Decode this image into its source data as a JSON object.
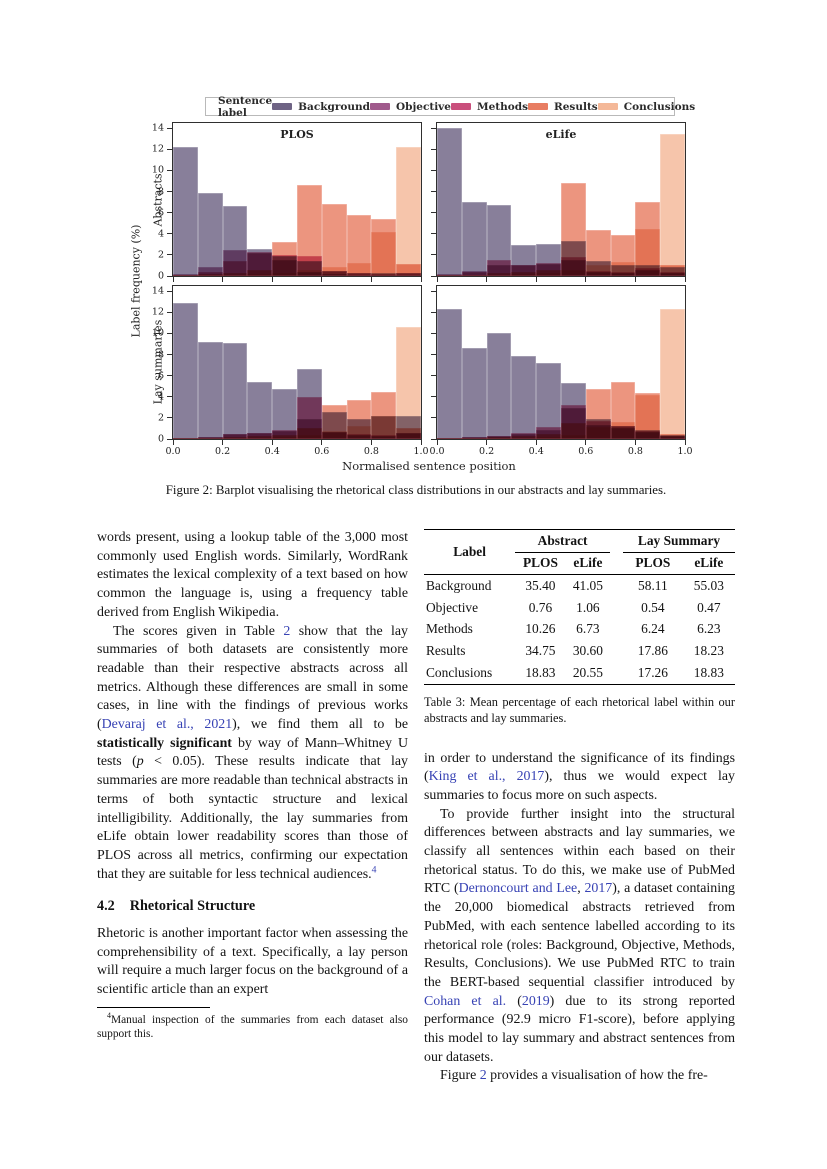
{
  "figure": {
    "caption": "Figure 2: Barplot visualising the rhetorical class distributions in our abstracts and lay summaries.",
    "chart_data": {
      "type": "bar",
      "variant": "overlaid-histogram-2x2-panels",
      "legend_title": "Sentence label",
      "legend_position": "top",
      "series_names": [
        "Background",
        "Objective",
        "Methods",
        "Results",
        "Conclusions"
      ],
      "colors": {
        "Background": "#6e6384",
        "Objective": "#a05a8c",
        "Methods": "#c94f7c",
        "Results": "#e87d62",
        "Conclusions": "#f4b898"
      },
      "col_titles": [
        "PLOS",
        "eLife"
      ],
      "row_labels": [
        "Abstracts",
        "Lay summaries"
      ],
      "ylabel": "Label frequency (%)",
      "xlabel": "Normalised sentence position",
      "y_ticks": [
        0,
        2,
        4,
        6,
        8,
        10,
        12,
        14
      ],
      "x_ticks": [
        "0.0",
        "0.2",
        "0.4",
        "0.6",
        "0.8",
        "1.0"
      ],
      "ylim": [
        0,
        14.5
      ],
      "xlim": [
        0.0,
        1.0
      ],
      "bin_width": 0.1,
      "grid": false,
      "panels": [
        {
          "row": "Abstracts",
          "col": "PLOS",
          "series": [
            {
              "name": "Background",
              "values": [
                12.2,
                7.9,
                6.6,
                2.6,
                1.9,
                1.4,
                0.5,
                0.3,
                0.25,
                0.3
              ]
            },
            {
              "name": "Objective",
              "values": [
                0.2,
                0.9,
                2.5,
                2.2,
                1.5,
                0.4,
                0.15,
                0.1,
                0.1,
                0.1
              ]
            },
            {
              "name": "Methods",
              "values": [
                0.1,
                0.4,
                1.4,
                2.3,
                2.0,
                1.9,
                0.5,
                0.3,
                0.2,
                0.3
              ]
            },
            {
              "name": "Results",
              "values": [
                0.1,
                0.15,
                0.3,
                0.6,
                3.2,
                8.6,
                6.8,
                5.8,
                5.4,
                1.1
              ]
            },
            {
              "name": "Conclusions",
              "values": [
                0.05,
                0.1,
                0.1,
                0.2,
                0.3,
                0.6,
                0.9,
                1.2,
                4.2,
                12.2
              ]
            }
          ]
        },
        {
          "row": "Abstracts",
          "col": "eLife",
          "series": [
            {
              "name": "Background",
              "values": [
                14.0,
                7.0,
                6.7,
                2.9,
                3.0,
                3.3,
                1.4,
                1.0,
                1.0,
                0.9
              ]
            },
            {
              "name": "Objective",
              "values": [
                0.15,
                0.5,
                1.0,
                1.0,
                1.1,
                1.5,
                0.4,
                0.3,
                0.6,
                0.3
              ]
            },
            {
              "name": "Methods",
              "values": [
                0.1,
                0.4,
                1.5,
                1.0,
                1.2,
                1.8,
                0.5,
                0.4,
                0.8,
                0.4
              ]
            },
            {
              "name": "Results",
              "values": [
                0.05,
                0.1,
                0.3,
                0.4,
                0.6,
                8.8,
                4.4,
                3.9,
                7.0,
                1.0
              ]
            },
            {
              "name": "Conclusions",
              "values": [
                0.05,
                0.1,
                0.1,
                0.15,
                0.3,
                0.6,
                1.0,
                1.3,
                4.5,
                13.5
              ]
            }
          ]
        },
        {
          "row": "Lay summaries",
          "col": "PLOS",
          "series": [
            {
              "name": "Background",
              "values": [
                12.9,
                9.2,
                9.1,
                5.4,
                4.7,
                6.65,
                2.6,
                1.9,
                2.2,
                2.2
              ]
            },
            {
              "name": "Objective",
              "values": [
                0.1,
                0.2,
                0.5,
                0.55,
                0.8,
                1.9,
                0.7,
                0.4,
                0.3,
                0.6
              ]
            },
            {
              "name": "Methods",
              "values": [
                0.1,
                0.15,
                0.5,
                0.6,
                0.9,
                4.0,
                0.7,
                0.5,
                0.4,
                0.6
              ]
            },
            {
              "name": "Results",
              "values": [
                0.05,
                0.1,
                0.15,
                0.25,
                0.4,
                1.0,
                3.2,
                3.7,
                4.45,
                1.0
              ]
            },
            {
              "name": "Conclusions",
              "values": [
                0.05,
                0.05,
                0.1,
                0.1,
                0.2,
                0.4,
                0.8,
                1.2,
                2.2,
                10.65
              ]
            }
          ]
        },
        {
          "row": "Lay summaries",
          "col": "eLife",
          "series": [
            {
              "name": "Background",
              "values": [
                12.3,
                8.6,
                10.0,
                7.9,
                7.2,
                5.3,
                1.9,
                1.2,
                0.9,
                0.4
              ]
            },
            {
              "name": "Objective",
              "values": [
                0.1,
                0.15,
                0.25,
                0.5,
                0.9,
                2.9,
                1.3,
                1.0,
                0.7,
                0.3
              ]
            },
            {
              "name": "Methods",
              "values": [
                0.1,
                0.15,
                0.3,
                0.6,
                1.1,
                3.2,
                1.7,
                1.2,
                0.8,
                0.3
              ]
            },
            {
              "name": "Results",
              "values": [
                0.05,
                0.1,
                0.15,
                0.25,
                0.5,
                1.5,
                4.7,
                5.4,
                4.4,
                0.5
              ]
            },
            {
              "name": "Conclusions",
              "values": [
                0.05,
                0.05,
                0.1,
                0.1,
                0.2,
                0.4,
                1.1,
                1.6,
                4.2,
                12.3
              ]
            }
          ]
        }
      ]
    }
  },
  "left_column": {
    "paragraphs": [
      {
        "indent": false,
        "segments": [
          {
            "t": "words present, using a lookup table of the 3,000 most commonly used English words.  Similarly, WordRank estimates the lexical complexity of a text based on how common the language is, using a frequency table derived from English Wikipedia."
          }
        ]
      },
      {
        "indent": true,
        "segments": [
          {
            "t": "The scores given in Table "
          },
          {
            "t": "2",
            "s": "link"
          },
          {
            "t": " show that the lay summaries of both datasets are consistently more readable than their respective abstracts across all metrics.  Although these differences are small in some cases, in line with the findings of previous works ("
          },
          {
            "t": "Devaraj et al., 2021",
            "s": "link"
          },
          {
            "t": "), we find them all to be "
          },
          {
            "t": "statistically significant",
            "s": "bold"
          },
          {
            "t": " by way of Mann–Whitney U tests ("
          },
          {
            "t": "p",
            "s": "italic"
          },
          {
            "t": " < 0.05).  These results indicate that lay summaries are more readable than technical abstracts in terms of both syntactic structure and lexical intelligibility.  Additionally, the lay summaries from eLife obtain lower readability scores than those of PLOS across all metrics, confirming our expectation that they are suitable for less technical audiences."
          },
          {
            "t": "4",
            "s": "sup link"
          }
        ]
      }
    ],
    "heading": {
      "number": "4.2",
      "title": "Rhetorical Structure"
    },
    "paragraph_after_heading": {
      "indent": false,
      "segments": [
        {
          "t": "Rhetoric is another important factor when assessing the comprehensibility of a text.  Specifically, a lay person will require a much larger focus on the background of a scientific article than an expert"
        }
      ]
    },
    "footnote": {
      "segments": [
        {
          "t": "4",
          "s": "sup"
        },
        {
          "t": "Manual inspection of the summaries from each dataset also support this."
        }
      ]
    }
  },
  "right_column": {
    "table": {
      "header": {
        "label": "Label",
        "group1": "Abstract",
        "group2": "Lay Summary"
      },
      "subheaders": [
        "PLOS",
        "eLife",
        "PLOS",
        "eLife"
      ],
      "rows": [
        [
          "Background",
          "35.40",
          "41.05",
          "58.11",
          "55.03"
        ],
        [
          "Objective",
          "0.76",
          "1.06",
          "0.54",
          "0.47"
        ],
        [
          "Methods",
          "10.26",
          "6.73",
          "6.24",
          "6.23"
        ],
        [
          "Results",
          "34.75",
          "30.60",
          "17.86",
          "18.23"
        ],
        [
          "Conclusions",
          "18.83",
          "20.55",
          "17.26",
          "18.83"
        ]
      ],
      "caption": "Table 3:  Mean percentage of each rhetorical label within our abstracts and lay summaries."
    },
    "paragraphs": [
      {
        "indent": false,
        "segments": [
          {
            "t": "in order to understand the significance of its findings ("
          },
          {
            "t": "King et al., 2017",
            "s": "link"
          },
          {
            "t": "), thus we would expect lay summaries to focus more on such aspects."
          }
        ]
      },
      {
        "indent": true,
        "segments": [
          {
            "t": "To provide further insight into the structural differences between abstracts and lay summaries, we classify all sentences within each based on their rhetorical status.  To do this, we make use of PubMed RTC ("
          },
          {
            "t": "Dernoncourt and Lee",
            "s": "link"
          },
          {
            "t": ", "
          },
          {
            "t": "2017",
            "s": "link"
          },
          {
            "t": "), a dataset containing the 20,000 biomedical abstracts retrieved from PubMed, with each sentence labelled according to its rhetorical role (roles: Background, Objective, Methods, Results, Conclusions). We use PubMed RTC to train the BERT-based sequential classifier introduced by "
          },
          {
            "t": "Cohan et al.",
            "s": "link"
          },
          {
            "t": " ("
          },
          {
            "t": "2019",
            "s": "link"
          },
          {
            "t": ") due to its strong reported performance (92.9 micro F1-score), before applying this model to lay summary and abstract sentences from our datasets."
          }
        ]
      },
      {
        "indent": true,
        "segments": [
          {
            "t": "Figure "
          },
          {
            "t": "2",
            "s": "link"
          },
          {
            "t": " provides a visualisation of how the fre-"
          }
        ]
      }
    ]
  }
}
